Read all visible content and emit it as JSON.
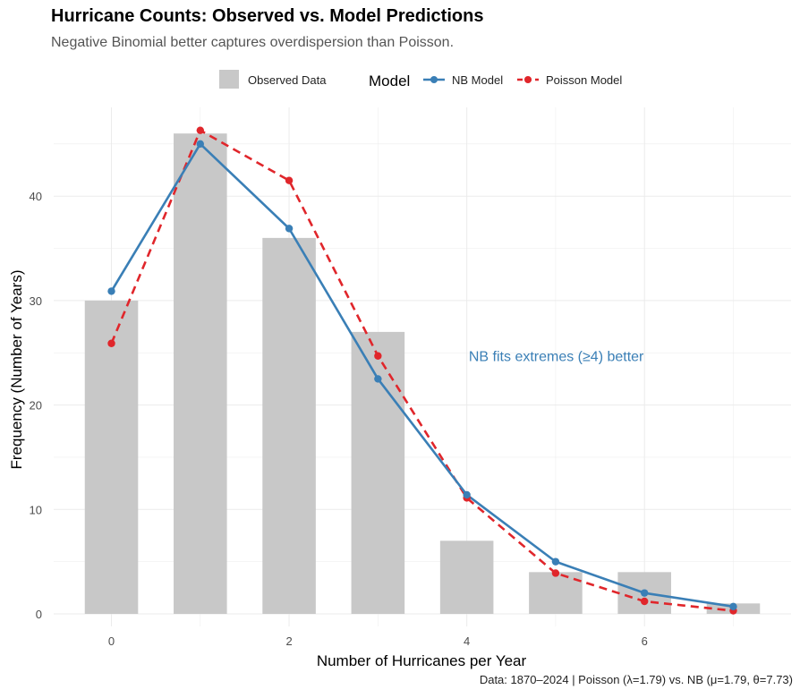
{
  "chart_data": {
    "type": "bar+line",
    "title": "Hurricane Counts: Observed vs. Model Predictions",
    "subtitle": "Negative Binomial better captures overdispersion than Poisson.",
    "caption": "Data: 1870–2024 | Poisson (λ=1.79) vs. NB (μ=1.79, θ=7.73)",
    "xlabel": "Number of Hurricanes per Year",
    "ylabel": "Frequency (Number of Years)",
    "x": [
      0,
      1,
      2,
      3,
      4,
      5,
      6,
      7
    ],
    "xlim": [
      -0.65,
      7.65
    ],
    "ylim": [
      -1.2,
      48.5
    ],
    "x_ticks": [
      0,
      2,
      4,
      6
    ],
    "y_ticks": [
      0,
      10,
      20,
      30,
      40
    ],
    "grid": true,
    "observed": {
      "name": "Observed Data",
      "color": "#c8c8c8",
      "values": [
        30,
        46,
        36,
        27,
        7,
        4,
        4,
        1
      ]
    },
    "legend_title": "Model",
    "legend_position": "top",
    "series": [
      {
        "name": "NB Model",
        "color": "#3a7fb6",
        "dashed": false,
        "values": [
          30.9,
          45.0,
          36.9,
          22.5,
          11.4,
          5.0,
          2.0,
          0.7
        ]
      },
      {
        "name": "Poisson Model",
        "color": "#e0262b",
        "dashed": true,
        "values": [
          25.9,
          46.3,
          41.5,
          24.7,
          11.1,
          3.9,
          1.2,
          0.3
        ]
      }
    ],
    "annotation": {
      "text": "NB fits extremes (≥4) better",
      "x": 4.0,
      "y": 24.7,
      "color": "#3a7fb6"
    }
  }
}
